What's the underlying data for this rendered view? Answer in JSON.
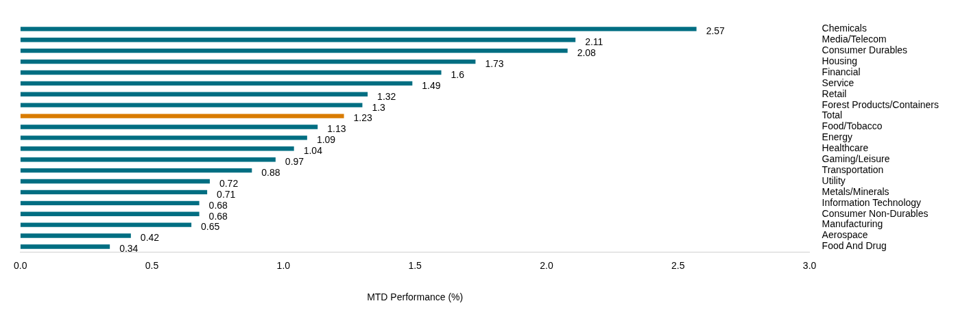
{
  "chart_data": {
    "type": "bar",
    "orientation": "horizontal",
    "xlabel": "MTD Performance (%)",
    "categories": [
      "Chemicals",
      "Media/Telecom",
      "Consumer Durables",
      "Housing",
      "Financial",
      "Service",
      "Retail",
      "Forest Products/Containers",
      "Total",
      "Food/Tobacco",
      "Energy",
      "Healthcare",
      "Gaming/Leisure",
      "Transportation",
      "Utility",
      "Metals/Minerals",
      "Information Technology",
      "Consumer Non-Durables",
      "Manufacturing",
      "Aerospace",
      "Food And Drug"
    ],
    "values": [
      2.57,
      2.11,
      2.08,
      1.73,
      1.6,
      1.49,
      1.32,
      1.3,
      1.23,
      1.13,
      1.09,
      1.04,
      0.97,
      0.88,
      0.72,
      0.71,
      0.68,
      0.68,
      0.65,
      0.42,
      0.34
    ],
    "colors": [
      "#006e82",
      "#006e82",
      "#006e82",
      "#006e82",
      "#006e82",
      "#006e82",
      "#006e82",
      "#006e82",
      "#d97b00",
      "#006e82",
      "#006e82",
      "#006e82",
      "#006e82",
      "#006e82",
      "#006e82",
      "#006e82",
      "#006e82",
      "#006e82",
      "#006e82",
      "#006e82",
      "#006e82"
    ],
    "xlim": [
      0,
      3
    ],
    "xticks": [
      {
        "value": 0,
        "label": "0.0"
      },
      {
        "value": 0.5,
        "label": "0.5"
      },
      {
        "value": 1,
        "label": "1.0"
      },
      {
        "value": 1.5,
        "label": "1.5"
      },
      {
        "value": 2,
        "label": "2.0"
      },
      {
        "value": 2.5,
        "label": "2.5"
      },
      {
        "value": 3,
        "label": "3.0"
      }
    ],
    "grid": false,
    "legend": false,
    "data_labels": true
  }
}
